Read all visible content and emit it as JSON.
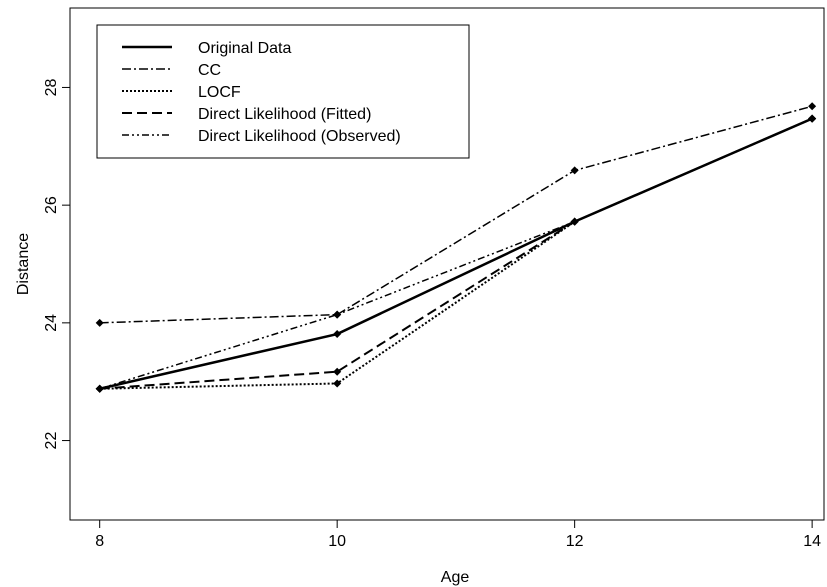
{
  "chart_data": {
    "type": "line",
    "title": "",
    "xlabel": "Age",
    "ylabel": "Distance",
    "x": [
      8,
      10,
      12,
      14
    ],
    "xticks": [
      "8",
      "10",
      "12",
      "14"
    ],
    "yticks": [
      "22",
      "24",
      "26",
      "28"
    ],
    "xlim": [
      7.75,
      14.1
    ],
    "ylim": [
      20.65,
      29.35
    ],
    "grid": false,
    "legend_position": "top-left",
    "series": [
      {
        "name": "Original Data",
        "style": "solid",
        "values": [
          22.88,
          23.81,
          25.72,
          27.47
        ]
      },
      {
        "name": "CC",
        "style": "dash-dot",
        "values": [
          24.0,
          24.14,
          26.59,
          27.68
        ]
      },
      {
        "name": "LOCF",
        "style": "dotted",
        "values": [
          22.88,
          22.97,
          25.72,
          27.47
        ]
      },
      {
        "name": "Direct Likelihood (Fitted)",
        "style": "dashed",
        "values": [
          22.88,
          23.17,
          25.72,
          27.47
        ]
      },
      {
        "name": "Direct Likelihood (Observed)",
        "style": "dash-dot-dot",
        "values": [
          22.88,
          24.14,
          25.72,
          27.47
        ]
      }
    ]
  }
}
